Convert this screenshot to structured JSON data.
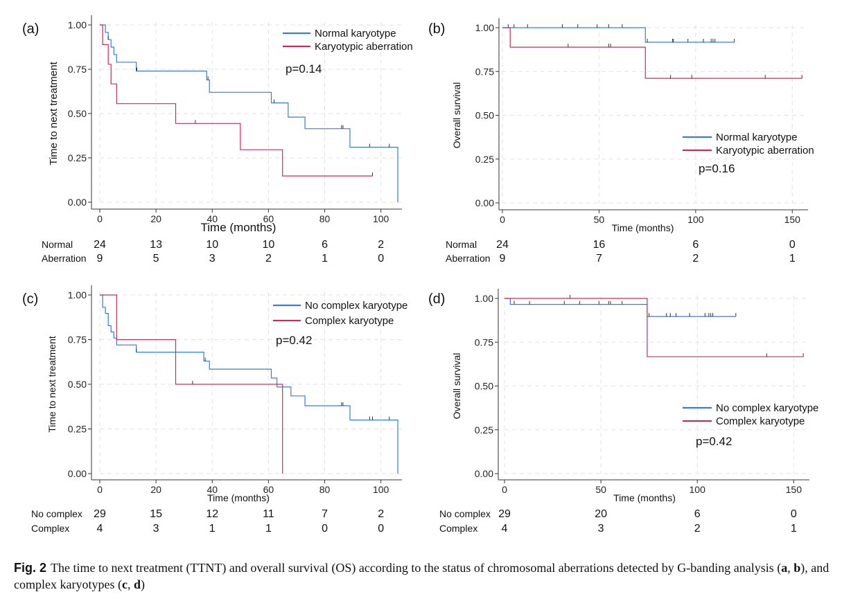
{
  "colors": {
    "normal": "#3a7bd5",
    "aberration": "#c2305a",
    "grid": "#e2e2e2",
    "axis": "#333333"
  },
  "chart_data": [
    {
      "panel": "(a)",
      "type": "line",
      "subtype": "kaplan-meier",
      "xlabel": "Time (months)",
      "ylabel": "Time to next treatment",
      "xlim": [
        0,
        106
      ],
      "ylim": [
        0,
        1
      ],
      "xticks": [
        0,
        20,
        40,
        60,
        80,
        100
      ],
      "yticks": [
        "0.00",
        "0.25",
        "0.50",
        "0.75",
        "1.00"
      ],
      "grid": "dashed",
      "legend_position": "top-right",
      "pvalue": "p=0.14",
      "series": [
        {
          "name": "Normal karyotype",
          "color": "#3a7bd5",
          "steps": [
            [
              0,
              1.0
            ],
            [
              2,
              0.958
            ],
            [
              3,
              0.917
            ],
            [
              4,
              0.875
            ],
            [
              5,
              0.833
            ],
            [
              6,
              0.79
            ],
            [
              13,
              0.74
            ],
            [
              38,
              0.69
            ],
            [
              39,
              0.62
            ],
            [
              61,
              0.56
            ],
            [
              67,
              0.48
            ],
            [
              73,
              0.415
            ],
            [
              89,
              0.31
            ],
            [
              106,
              0.0
            ]
          ],
          "censors": [
            [
              3,
              0.917
            ],
            [
              13,
              0.74
            ],
            [
              13.2,
              0.74
            ],
            [
              38.5,
              0.69
            ],
            [
              62,
              0.56
            ],
            [
              86,
              0.415
            ],
            [
              86.5,
              0.415
            ],
            [
              96,
              0.31
            ],
            [
              103,
              0.31
            ]
          ]
        },
        {
          "name": "Karyotypic aberration",
          "color": "#c2305a",
          "steps": [
            [
              0,
              1.0
            ],
            [
              1,
              0.889
            ],
            [
              3,
              0.778
            ],
            [
              4,
              0.667
            ],
            [
              6,
              0.556
            ],
            [
              27,
              0.444
            ],
            [
              50,
              0.296
            ],
            [
              65,
              0.148
            ],
            [
              97,
              0.148
            ]
          ],
          "censors": [
            [
              34,
              0.444
            ],
            [
              97,
              0.148
            ]
          ]
        }
      ],
      "risk_table": {
        "times": [
          0,
          20,
          40,
          60,
          80,
          100
        ],
        "rows": [
          {
            "label": "Normal",
            "values": [
              "24",
              "13",
              "10",
              "10",
              "6",
              "2"
            ]
          },
          {
            "label": "Aberration",
            "values": [
              "9",
              "5",
              "3",
              "2",
              "1",
              "0"
            ]
          }
        ]
      }
    },
    {
      "panel": "(b)",
      "type": "line",
      "subtype": "kaplan-meier",
      "xlabel": "Time (months)",
      "ylabel": "Overall survival",
      "xlim": [
        0,
        156
      ],
      "ylim": [
        0,
        1
      ],
      "xticks": [
        0,
        50,
        100,
        150
      ],
      "yticks": [
        "0.00",
        "0.25",
        "0.50",
        "0.75",
        "1.00"
      ],
      "grid": "dashed",
      "legend_position": "right",
      "pvalue": "p=0.16",
      "series": [
        {
          "name": "Normal karyotype",
          "color": "#3a7bd5",
          "steps": [
            [
              0,
              1.0
            ],
            [
              74,
              0.917
            ],
            [
              120,
              0.917
            ]
          ],
          "censors": [
            [
              3,
              1.0
            ],
            [
              6,
              1.0
            ],
            [
              13,
              1.0
            ],
            [
              31,
              1.0
            ],
            [
              39,
              1.0
            ],
            [
              49,
              1.0
            ],
            [
              55,
              1.0
            ],
            [
              62,
              1.0
            ],
            [
              75,
              0.917
            ],
            [
              88,
              0.917
            ],
            [
              88.5,
              0.917
            ],
            [
              96,
              0.917
            ],
            [
              104,
              0.917
            ],
            [
              108,
              0.917
            ],
            [
              109,
              0.917
            ],
            [
              110,
              0.917
            ],
            [
              120,
              0.917
            ]
          ]
        },
        {
          "name": "Karyotypic aberration",
          "color": "#c2305a",
          "steps": [
            [
              0,
              1.0
            ],
            [
              4,
              0.889
            ],
            [
              74,
              0.711
            ],
            [
              155,
              0.711
            ]
          ],
          "censors": [
            [
              34,
              0.889
            ],
            [
              55,
              0.889
            ],
            [
              56,
              0.889
            ],
            [
              87,
              0.711
            ],
            [
              98,
              0.711
            ],
            [
              136,
              0.711
            ],
            [
              155,
              0.711
            ]
          ]
        }
      ],
      "risk_table": {
        "times": [
          0,
          50,
          100,
          150
        ],
        "rows": [
          {
            "label": "Normal",
            "values": [
              "24",
              "16",
              "6",
              "0"
            ]
          },
          {
            "label": "Aberration",
            "values": [
              "9",
              "7",
              "2",
              "1"
            ]
          }
        ]
      }
    },
    {
      "panel": "(c)",
      "type": "line",
      "subtype": "kaplan-meier",
      "xlabel": "Time (months)",
      "ylabel": "Time to next treatment",
      "xlim": [
        0,
        106
      ],
      "ylim": [
        0,
        1
      ],
      "xticks": [
        0,
        20,
        40,
        60,
        80,
        100
      ],
      "yticks": [
        "0.00",
        "0.25",
        "0.50",
        "0.75",
        "1.00"
      ],
      "grid": "dashed",
      "legend_position": "top-right",
      "pvalue": "p=0.42",
      "series": [
        {
          "name": "No complex karyotype",
          "color": "#3a7bd5",
          "steps": [
            [
              0,
              1.0
            ],
            [
              1,
              0.931
            ],
            [
              2,
              0.897
            ],
            [
              3,
              0.828
            ],
            [
              4,
              0.793
            ],
            [
              5,
              0.759
            ],
            [
              6,
              0.72
            ],
            [
              13,
              0.68
            ],
            [
              37,
              0.63
            ],
            [
              39,
              0.585
            ],
            [
              61,
              0.535
            ],
            [
              63,
              0.485
            ],
            [
              68,
              0.435
            ],
            [
              73,
              0.38
            ],
            [
              89,
              0.3
            ],
            [
              106,
              0.0
            ]
          ],
          "censors": [
            [
              13,
              0.68
            ],
            [
              37.5,
              0.63
            ],
            [
              86,
              0.38
            ],
            [
              86.5,
              0.38
            ],
            [
              96,
              0.3
            ],
            [
              97,
              0.3
            ],
            [
              103,
              0.3
            ]
          ]
        },
        {
          "name": "Complex karyotype",
          "color": "#c2305a",
          "steps": [
            [
              0,
              1.0
            ],
            [
              6,
              0.75
            ],
            [
              27,
              0.5
            ],
            [
              65,
              0.0
            ]
          ],
          "censors": [
            [
              33,
              0.5
            ]
          ]
        }
      ],
      "risk_table": {
        "times": [
          0,
          20,
          40,
          60,
          80,
          100
        ],
        "rows": [
          {
            "label": "No complex",
            "values": [
              "29",
              "15",
              "12",
              "11",
              "7",
              "2"
            ]
          },
          {
            "label": "Complex",
            "values": [
              "4",
              "3",
              "1",
              "1",
              "0",
              "0"
            ]
          }
        ]
      }
    },
    {
      "panel": "(d)",
      "type": "line",
      "subtype": "kaplan-meier",
      "xlabel": "Time (months)",
      "ylabel": "Overall survival",
      "xlim": [
        0,
        156
      ],
      "ylim": [
        0,
        1
      ],
      "xticks": [
        0,
        50,
        100,
        150
      ],
      "yticks": [
        "0.00",
        "0.25",
        "0.50",
        "0.75",
        "1.00"
      ],
      "grid": "dashed",
      "legend_position": "right",
      "pvalue": "p=0.42",
      "series": [
        {
          "name": "No complex karyotype",
          "color": "#3a7bd5",
          "steps": [
            [
              0,
              1.0
            ],
            [
              3,
              0.966
            ],
            [
              74,
              0.897
            ],
            [
              120,
              0.897
            ]
          ],
          "censors": [
            [
              5,
              0.966
            ],
            [
              13,
              0.966
            ],
            [
              31,
              0.966
            ],
            [
              39,
              0.966
            ],
            [
              49,
              0.966
            ],
            [
              54,
              0.966
            ],
            [
              55,
              0.966
            ],
            [
              61,
              0.966
            ],
            [
              75,
              0.897
            ],
            [
              84,
              0.897
            ],
            [
              86,
              0.897
            ],
            [
              89,
              0.897
            ],
            [
              96,
              0.897
            ],
            [
              104,
              0.897
            ],
            [
              106,
              0.897
            ],
            [
              107,
              0.897
            ],
            [
              108,
              0.897
            ],
            [
              120,
              0.897
            ]
          ]
        },
        {
          "name": "Complex karyotype",
          "color": "#c2305a",
          "steps": [
            [
              0,
              1.0
            ],
            [
              74,
              0.667
            ],
            [
              155,
              0.667
            ]
          ],
          "censors": [
            [
              34,
              1.0
            ],
            [
              136,
              0.667
            ],
            [
              155,
              0.667
            ]
          ]
        }
      ],
      "risk_table": {
        "times": [
          0,
          50,
          100,
          150
        ],
        "rows": [
          {
            "label": "No complex",
            "values": [
              "29",
              "20",
              "6",
              "0"
            ]
          },
          {
            "label": "Complex",
            "values": [
              "4",
              "3",
              "2",
              "1"
            ]
          }
        ]
      }
    }
  ],
  "caption": {
    "label": "Fig. 2",
    "text_1": "The time to next treatment (TTNT) and overall survival (OS) according to the status of chromosomal aberrations detected by G-banding analysis (",
    "a": "a",
    "sep1": ", ",
    "b": "b",
    "text_2": "), and complex karyotypes (",
    "c": "c",
    "sep2": ", ",
    "d": "d",
    "text_3": ")"
  }
}
